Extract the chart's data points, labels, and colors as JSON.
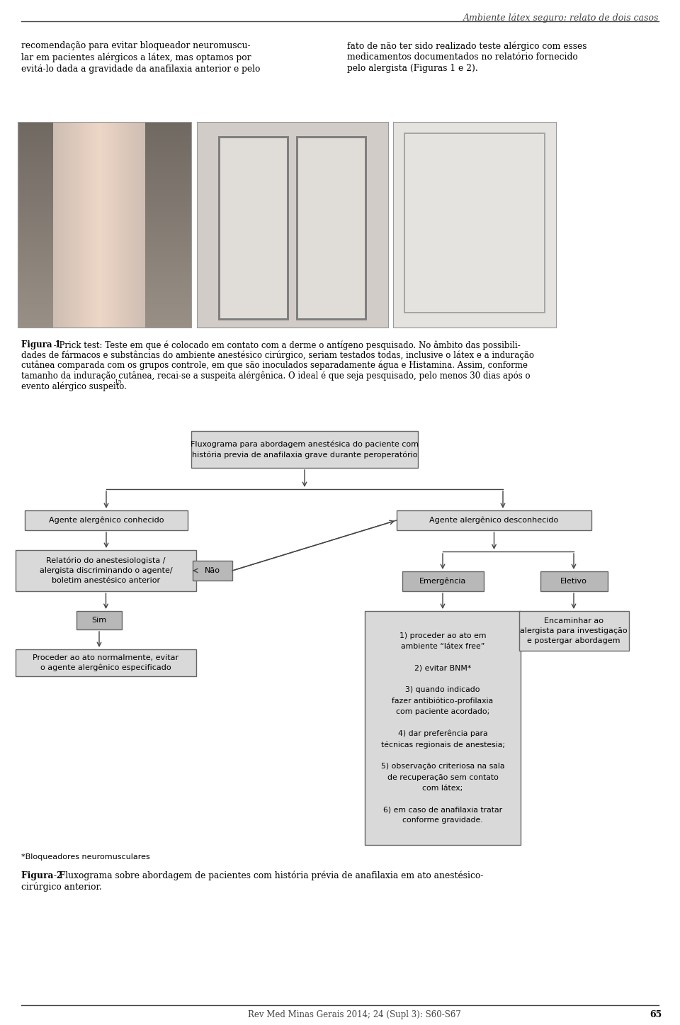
{
  "header_text": "Ambiente látex seguro: relato de dois casos",
  "col1_para": "recomendação para evitar bloqueador neuromuscu-\nlar em pacientes alérgicos a látex, mas optamos por\nevitá-lo dada a gravidade da anafilaxia anterior e pelo",
  "col2_para": "fato de não ter sido realizado teste alérgico com esses\nmedicamentos documentados no relatório fornecido\npelo alergista (Figuras 1 e 2).",
  "figura1_line0": "Figura 1",
  "figura1_line0b": " - Prick test: Teste em que é colocado em contato com a derme o antígeno pesquisado. No âmbito das possibili-",
  "figura1_line1": "dades de fármacos e substâncias do ambiente anestésico cirúrgico, seriam testados todas, inclusive o látex e a induração",
  "figura1_line2": "cutânea comparada com os grupos controle, em que são inoculados separadamente água e Histamina. Assim, conforme",
  "figura1_line3": "tamanho da induração cutânea, recai-se a suspeita alérgênica. O ideal é que seja pesquisado, pelo menos 30 dias após o",
  "figura1_line4": "evento alérgico suspeito.",
  "figura1_sup": "15",
  "flowchart_title": "Fluxograma para abordagem anestésica do paciente com\nhistória previa de anafilaxia grave durante peroperatório",
  "box_alerg_conhecido": "Agente alergênico conhecido",
  "box_relatorio": "Relatório do anestesiologista /\nalergista discriminando o agente/\nboletim anestésico anterior",
  "box_nao": "Não",
  "box_sim": "Sim",
  "box_proceder": "Proceder ao ato normalmente, evitar\no agente alergênico especificado",
  "box_alerg_desconhecido": "Agente alergênico desconhecido",
  "box_emergencia": "Emergência",
  "box_eletivo": "Eletivo",
  "box_encaminhar": "Encaminhar ao\nalergista para investigação\ne postergar abordagem",
  "box_procedimentos": "1) proceder ao ato em\nambiente “látex free”\n\n2) evitar BNM*\n\n3) quando indicado\nfazer antibiótico-profilaxia\ncom paciente acordado;\n\n4) dar preferência para\ntécnicas regionais de anestesia;\n\n5) observação criteriosa na sala\nde recuperação sem contato\ncom látex;\n\n6) em caso de anafilaxia tratar\nconforme gravidade.",
  "footnote_bnm": "*Bloqueadores neuromusculares",
  "figura2_line0": "Figura 2",
  "figura2_line0b": " - Fluxograma sobre abordagem de pacientes com história prévia de anafilaxia em ato anestésico-",
  "figura2_line1": "cirúrgico anterior.",
  "journal_ref": "Rev Med Minas Gerais 2014; 24 (Supl 3): S60-S67",
  "page_num": "65",
  "bg_color": "#ffffff",
  "box_fill_light": "#d9d9d9",
  "box_fill_medium": "#b8b8b8",
  "line_color": "#444444",
  "text_color": "#000000",
  "header_color": "#555555"
}
